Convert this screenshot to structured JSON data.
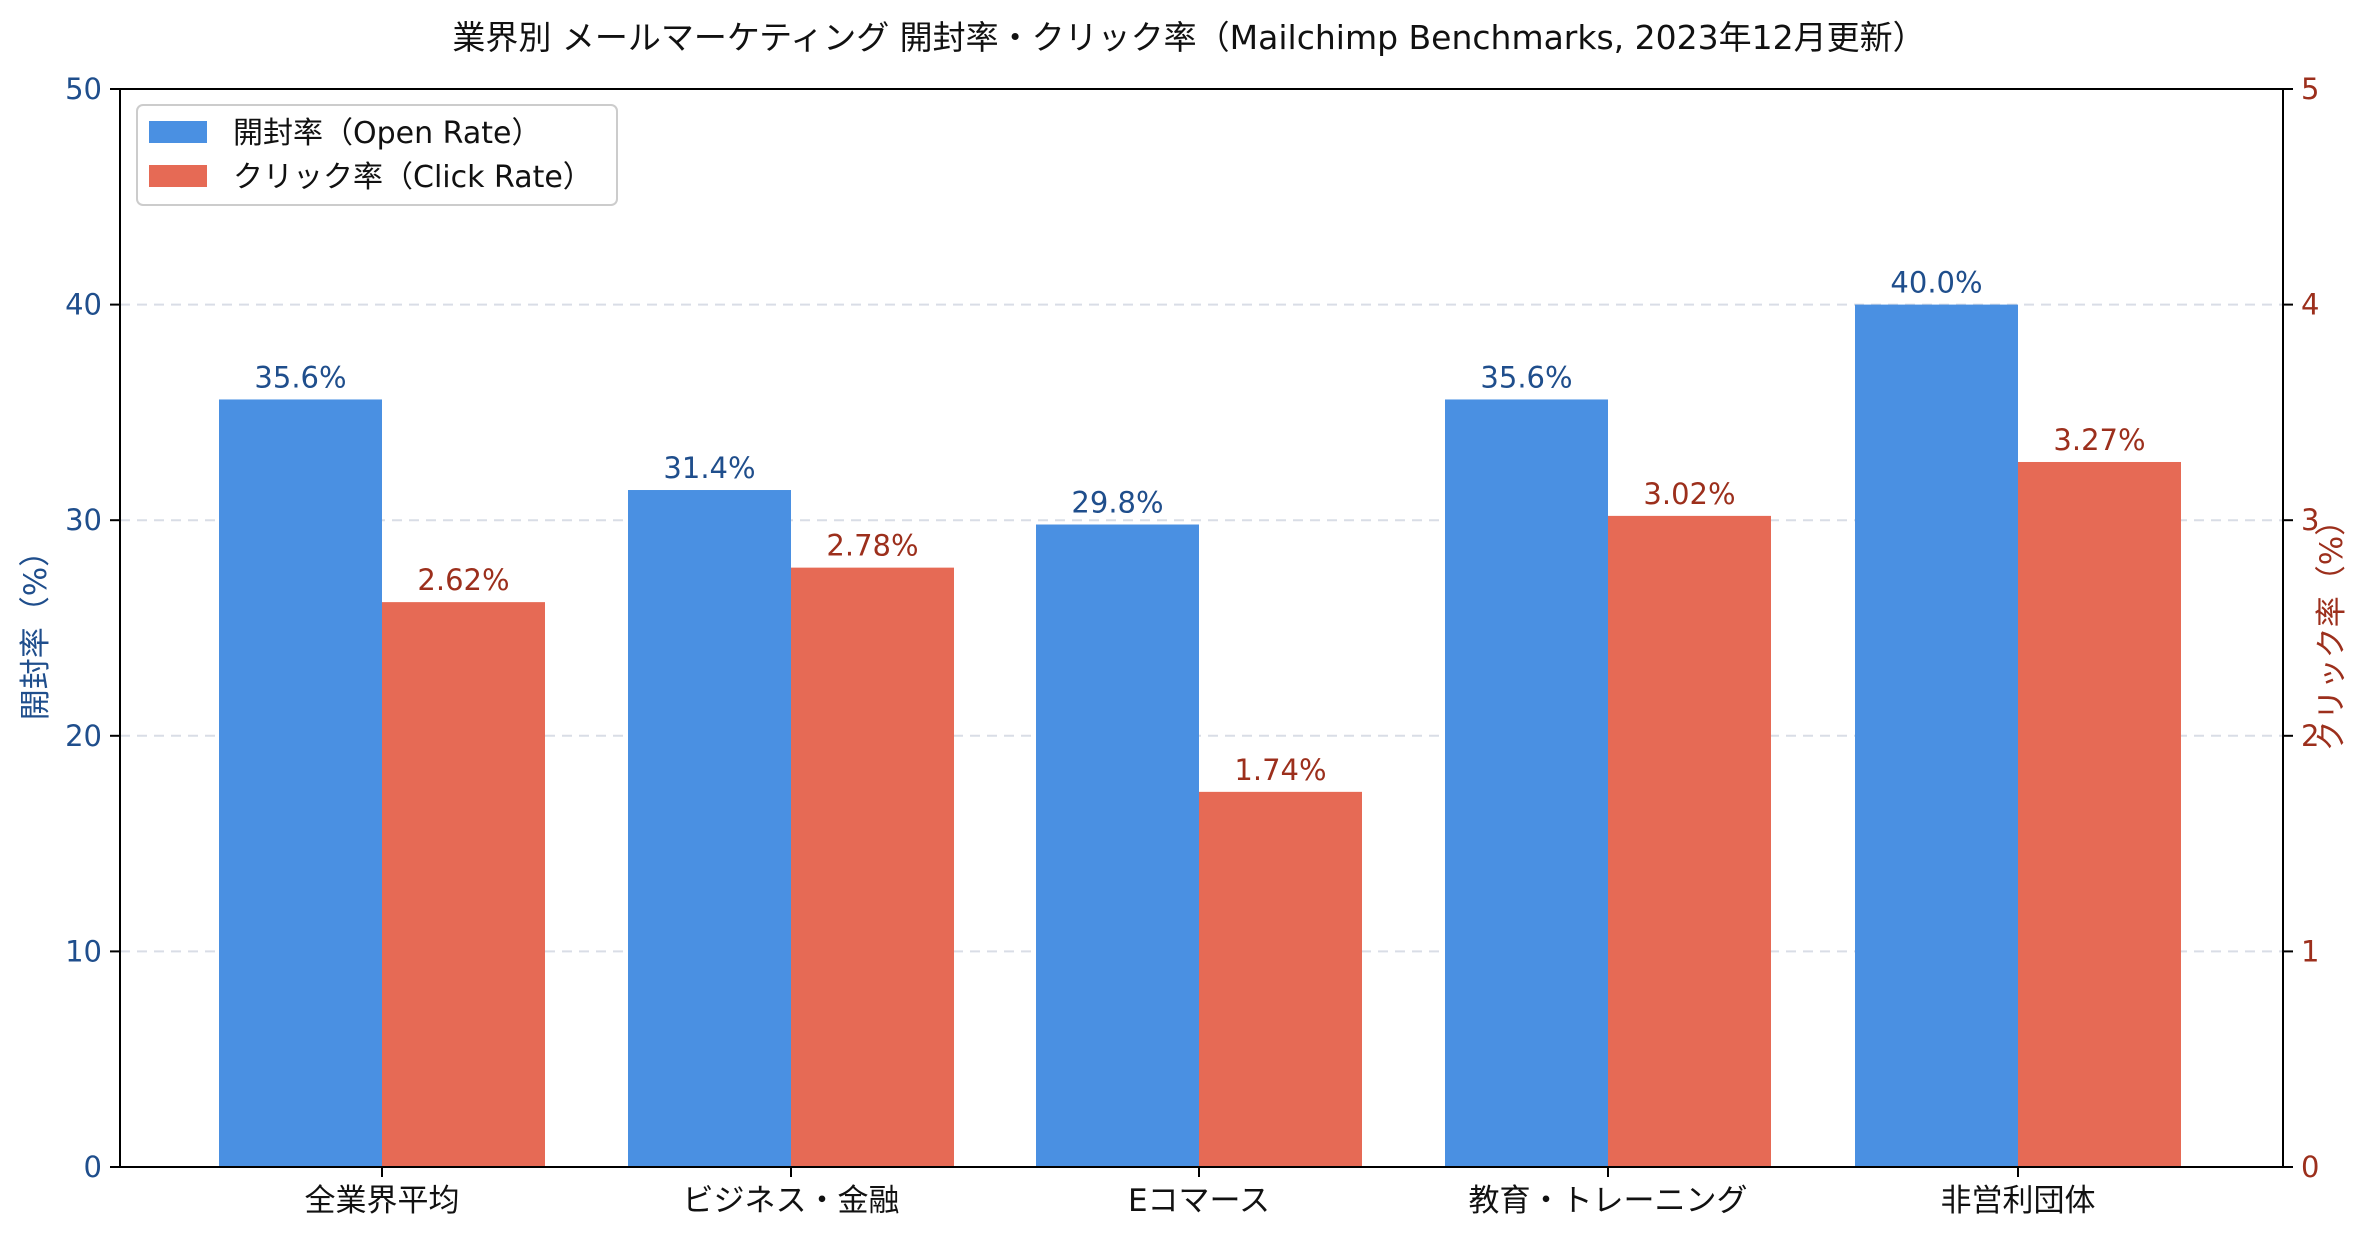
{
  "chart_data": {
    "type": "bar",
    "title": "業界別 メールマーケティング 開封率・クリック率（Mailchimp Benchmarks, 2023年12月更新）",
    "categories": [
      "全業界平均",
      "ビジネス・金融",
      "Eコマース",
      "教育・トレーニング",
      "非営利団体"
    ],
    "series": [
      {
        "name": "開封率（Open Rate）",
        "axis": "left",
        "values": [
          35.6,
          31.4,
          29.8,
          35.6,
          40.0
        ],
        "labels": [
          "35.6%",
          "31.4%",
          "29.8%",
          "35.6%",
          "40.0%"
        ],
        "color": "#4a90e2",
        "label_color": "#1f4e8c"
      },
      {
        "name": "クリック率（Click Rate）",
        "axis": "right",
        "values": [
          2.62,
          2.78,
          1.74,
          3.02,
          3.27
        ],
        "labels": [
          "2.62%",
          "2.78%",
          "1.74%",
          "3.02%",
          "3.27%"
        ],
        "color": "#e66a55",
        "label_color": "#9c2f1c"
      }
    ],
    "ylabel": "開封率（%）",
    "ylabel_right": "クリック率（%）",
    "ylim": [
      0,
      50
    ],
    "ylim_right": [
      0,
      5
    ],
    "yticks": [
      "0",
      "10",
      "20",
      "30",
      "40",
      "50"
    ],
    "yticks_right": [
      "0",
      "1",
      "2",
      "3",
      "4",
      "5"
    ],
    "grid": true,
    "legend_position": "top-left",
    "left_axis_color": "#1f4e8c",
    "right_axis_color": "#9c2f1c"
  }
}
